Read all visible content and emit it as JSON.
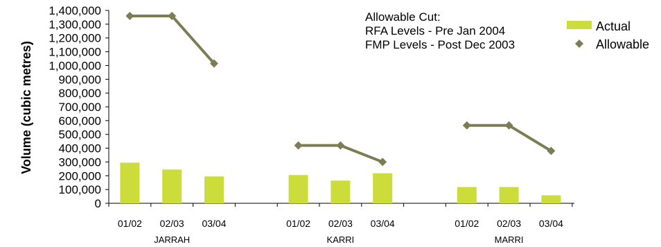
{
  "chart_data": {
    "type": "bar",
    "ylabel": "Volume (cubic metres)",
    "ylim": [
      0,
      1400000
    ],
    "yticks": [
      0,
      100000,
      200000,
      300000,
      400000,
      500000,
      600000,
      700000,
      800000,
      900000,
      1000000,
      1100000,
      1200000,
      1300000,
      1400000
    ],
    "ytick_labels": [
      "0",
      "100,000",
      "200,000",
      "300,000",
      "400,000",
      "500,000",
      "600,000",
      "700,000",
      "800,000",
      "900,000",
      "1,000,000",
      "1,100,000",
      "1,200,000",
      "1,300,000",
      "1,400,000"
    ],
    "groups": [
      {
        "name": "JARRAH",
        "categories": [
          "01/02",
          "02/03",
          "03/04"
        ],
        "actual": [
          295000,
          245000,
          195000
        ],
        "allowable": [
          1360000,
          1360000,
          1015000
        ]
      },
      {
        "name": "KARRI",
        "categories": [
          "01/02",
          "02/03",
          "03/04"
        ],
        "actual": [
          205000,
          165000,
          218000
        ],
        "allowable": [
          420000,
          420000,
          300000
        ]
      },
      {
        "name": "MARRI",
        "categories": [
          "01/02",
          "02/03",
          "03/04"
        ],
        "actual": [
          118000,
          118000,
          58000
        ],
        "allowable": [
          565000,
          565000,
          380000
        ]
      }
    ],
    "series": [
      {
        "name": "Actual",
        "type": "bar",
        "color": "#ccdd3b"
      },
      {
        "name": "Allowable",
        "type": "line",
        "marker": "diamond",
        "color": "#7d7d55"
      }
    ],
    "annotation": [
      "Allowable Cut:",
      "RFA Levels - Pre Jan 2004",
      "FMP Levels - Post Dec 2003"
    ],
    "legend_position": "top-right",
    "grid": false
  }
}
